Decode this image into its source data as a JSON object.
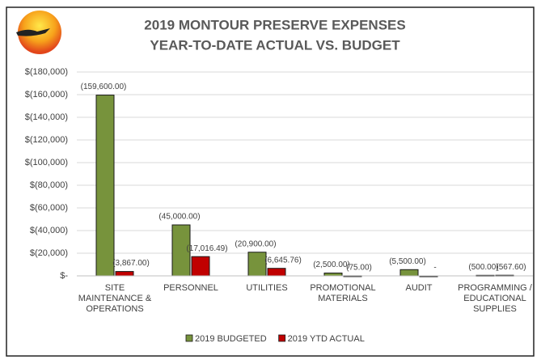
{
  "chart_data": {
    "type": "bar",
    "title": [
      "2019 MONTOUR PRESERVE EXPENSES",
      "YEAR-TO-DATE ACTUAL VS. BUDGET"
    ],
    "categories": [
      "SITE MAINTENANCE & OPERATIONS",
      "PERSONNEL",
      "UTILITIES",
      "PROMOTIONAL MATERIALS",
      "AUDIT",
      "PROGRAMMING / EDUCATIONAL SUPPLIES"
    ],
    "series": [
      {
        "name": "2019 BUDGETED",
        "color": "#77933c",
        "values": [
          -159600,
          -45000,
          -20900,
          -2500,
          -5500,
          -500
        ],
        "value_labels": [
          "(159,600.00)",
          "(45,000.00)",
          "(20,900.00)",
          "(2,500.00)",
          "(5,500.00)",
          "(500.00)"
        ]
      },
      {
        "name": "2019 YTD ACTUAL",
        "color": "#c00000",
        "values": [
          -3867,
          -17016.49,
          -6645.76,
          -75,
          0,
          -567.6
        ],
        "value_labels": [
          "(3,867.00)",
          "(17,016.49)",
          "(6,645.76)",
          "(75.00)",
          "-",
          "(567.60)"
        ]
      }
    ],
    "ylim": [
      0,
      -180000
    ],
    "yticks": [
      {
        "value": 0,
        "label": "$-"
      },
      {
        "value": -20000,
        "label": "$(20,000)"
      },
      {
        "value": -40000,
        "label": "$(40,000)"
      },
      {
        "value": -60000,
        "label": "$(60,000)"
      },
      {
        "value": -80000,
        "label": "$(80,000)"
      },
      {
        "value": -100000,
        "label": "$(100,000)"
      },
      {
        "value": -120000,
        "label": "$(120,000)"
      },
      {
        "value": -140000,
        "label": "$(140,000)"
      },
      {
        "value": -160000,
        "label": "$(160,000)"
      },
      {
        "value": -180000,
        "label": "$(180,000)"
      }
    ],
    "grid": true,
    "legend": "bottom"
  }
}
